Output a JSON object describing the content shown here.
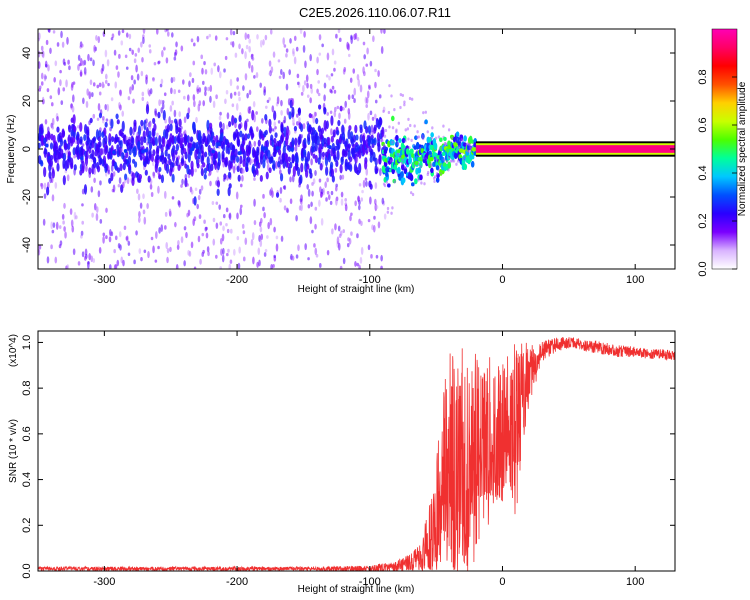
{
  "title": "C2E5.2026.110.06.07.R11",
  "chart_data": [
    {
      "type": "heatmap",
      "xlabel": "Height of straight line (km)",
      "ylabel": "Frequency (Hz)",
      "xlim": [
        -350,
        130
      ],
      "ylim": [
        -50,
        50
      ],
      "xticks": [
        -300,
        -200,
        -100,
        0,
        100
      ],
      "yticks": [
        -40,
        -20,
        0,
        20,
        40
      ],
      "colorbar": {
        "label": "Normalized spectral amplitude",
        "range": [
          0,
          1
        ],
        "ticks": [
          0.0,
          0.2,
          0.4,
          0.6,
          0.8
        ],
        "colors": [
          "#ffffff",
          "#d9b3ff",
          "#7a00ff",
          "#2a00ff",
          "#0050ff",
          "#00c8ff",
          "#00ff9a",
          "#4cff00",
          "#c8ff00",
          "#ffd000",
          "#ff5000",
          "#ff0000",
          "#ff0066",
          "#ff00b4"
        ]
      },
      "regions": [
        {
          "x_range": [
            -350,
            -90
          ],
          "freq_center": 0,
          "core_halfwidth_hz": 8,
          "spread_halfwidth_hz": 50,
          "typical_amplitude": 0.1
        },
        {
          "x_range": [
            -90,
            -20
          ],
          "freq_center": -5,
          "core_halfwidth_hz": 5,
          "typical_amplitude": 0.45
        },
        {
          "x_range": [
            -20,
            130
          ],
          "freq_center": 0,
          "core_halfwidth_hz": 1,
          "typical_amplitude": 0.95
        }
      ]
    },
    {
      "type": "line",
      "xlabel": "Height of straight line (km)",
      "ylabel": "SNR (10 * v/v)",
      "multiplier": "(x10^4)",
      "xlim": [
        -350,
        130
      ],
      "ylim": [
        0,
        1.05
      ],
      "xticks": [
        -300,
        -200,
        -100,
        0,
        100
      ],
      "yticks": [
        0.0,
        0.2,
        0.4,
        0.6,
        0.8,
        1.0
      ],
      "color": "#f03030",
      "series": [
        {
          "x": [
            -350,
            -300,
            -250,
            -200,
            -150,
            -100,
            -80,
            -70,
            -60,
            -50,
            -45,
            -40,
            -35,
            -30,
            -25,
            -20,
            -15,
            -10,
            -5,
            0,
            5,
            10,
            15,
            20,
            25,
            30,
            40,
            50,
            60,
            70,
            80,
            90,
            100,
            110,
            120,
            130
          ],
          "values": [
            0.01,
            0.01,
            0.01,
            0.01,
            0.01,
            0.01,
            0.02,
            0.04,
            0.06,
            0.15,
            0.25,
            0.3,
            0.35,
            0.4,
            0.4,
            0.45,
            0.5,
            0.5,
            0.55,
            0.6,
            0.65,
            0.7,
            0.8,
            0.85,
            0.9,
            0.96,
            0.99,
            1.0,
            0.99,
            0.98,
            0.97,
            0.96,
            0.96,
            0.95,
            0.95,
            0.94
          ],
          "envelope_max": [
            0.02,
            0.02,
            0.02,
            0.02,
            0.02,
            0.03,
            0.05,
            0.08,
            0.15,
            0.5,
            0.75,
            1.02,
            0.9,
            1.0,
            0.95,
            0.95,
            0.9,
            0.95,
            0.95,
            0.95,
            0.98,
            1.0,
            1.0,
            1.01,
            1.02,
            1.02,
            1.03,
            1.03,
            1.02,
            1.01,
            1.0,
            0.99,
            0.98,
            0.97,
            0.97,
            0.96
          ],
          "envelope_min": [
            0.0,
            0.0,
            0.0,
            0.0,
            0.0,
            0.0,
            0.0,
            0.0,
            0.01,
            0.0,
            0.0,
            0.0,
            0.0,
            0.0,
            0.0,
            0.0,
            0.1,
            0.2,
            0.3,
            0.3,
            0.4,
            0.22,
            0.55,
            0.7,
            0.8,
            0.92,
            0.96,
            0.97,
            0.96,
            0.95,
            0.94,
            0.93,
            0.93,
            0.92,
            0.92,
            0.91
          ]
        }
      ]
    }
  ]
}
